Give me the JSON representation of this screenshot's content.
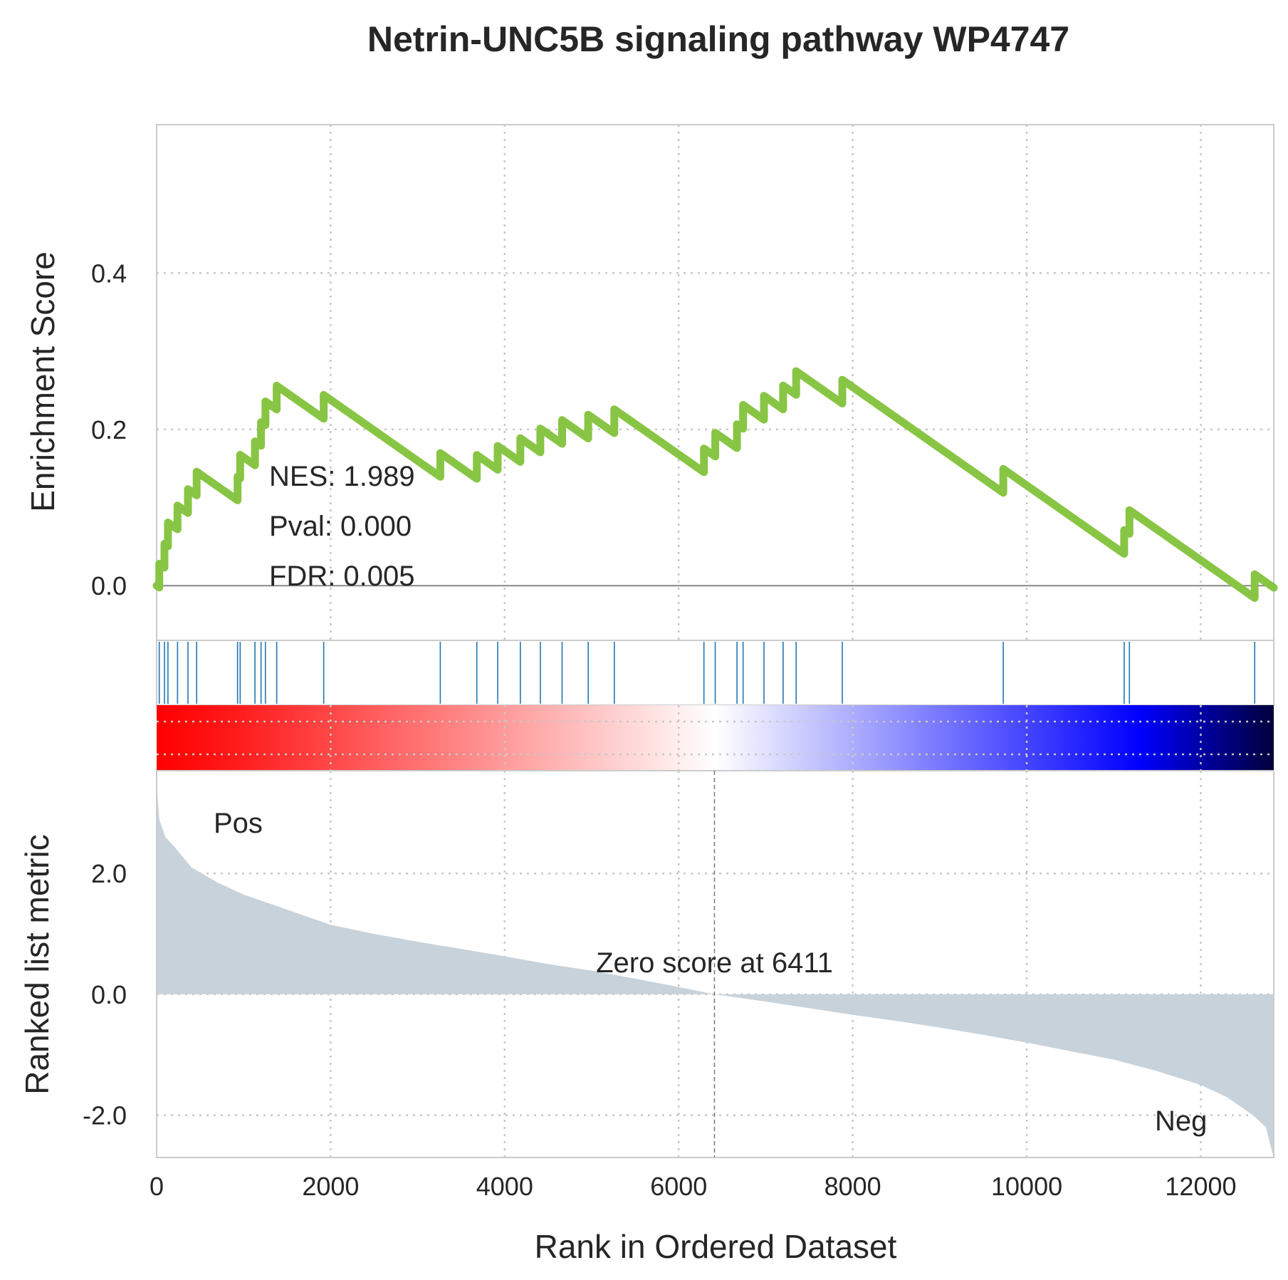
{
  "chart_data": {
    "type": "line",
    "title": "Netrin-UNC5B signaling pathway WP4747",
    "xlabel": "Rank in Ordered Dataset",
    "xlim": [
      0,
      12839
    ],
    "x_ticks": [
      "0",
      "2000",
      "4000",
      "6000",
      "8000",
      "10000",
      "12000"
    ],
    "x_tick_values": [
      0,
      2000,
      4000,
      6000,
      8000,
      10000,
      12000
    ],
    "es_panel": {
      "ylabel": "Enrichment Score",
      "ylim": [
        -0.07,
        0.59
      ],
      "y_ticks": [
        "0.0",
        "0.2",
        "0.4"
      ],
      "y_tick_values": [
        0.0,
        0.2,
        0.4
      ],
      "line_color": "#88c544",
      "hits": [
        30,
        90,
        130,
        240,
        360,
        460,
        930,
        960,
        1130,
        1200,
        1250,
        1380,
        1920,
        3260,
        3680,
        3920,
        4180,
        4410,
        4660,
        4960,
        5260,
        6290,
        6420,
        6670,
        6740,
        6980,
        7200,
        7350,
        7880,
        9730,
        11120,
        11180,
        12620
      ],
      "nes": "NES: 1.989",
      "pval": "Pval: 0.000",
      "fdr": "FDR: 0.005"
    },
    "hits_color": "#1f77b4",
    "colorbar": {
      "colors": [
        "#ff0000",
        "#ffffff",
        "#0000ff",
        "#000033"
      ]
    },
    "rank_panel": {
      "ylabel": "Ranked list metric",
      "ylim": [
        -2.7,
        3.7
      ],
      "y_ticks": [
        "2.0",
        "0.0",
        "-2.0"
      ],
      "y_tick_values": [
        2.0,
        0.0,
        -2.0
      ],
      "fill_color": "#c8d2da",
      "zero_cross": 6411,
      "zero_label": "Zero score at 6411",
      "pos_label": "Pos",
      "neg_label": "Neg",
      "pos_color": "#ff0000",
      "neg_color": "#0000ff",
      "curve": [
        [
          0,
          3.5
        ],
        [
          30,
          2.9
        ],
        [
          100,
          2.6
        ],
        [
          200,
          2.45
        ],
        [
          400,
          2.1
        ],
        [
          700,
          1.85
        ],
        [
          1000,
          1.65
        ],
        [
          1500,
          1.4
        ],
        [
          2000,
          1.15
        ],
        [
          2500,
          1.0
        ],
        [
          3000,
          0.87
        ],
        [
          3500,
          0.75
        ],
        [
          4000,
          0.63
        ],
        [
          4500,
          0.5
        ],
        [
          5000,
          0.39
        ],
        [
          5500,
          0.26
        ],
        [
          6000,
          0.12
        ],
        [
          6411,
          0.0
        ],
        [
          7000,
          -0.12
        ],
        [
          7500,
          -0.23
        ],
        [
          8000,
          -0.34
        ],
        [
          8500,
          -0.44
        ],
        [
          9000,
          -0.55
        ],
        [
          9500,
          -0.67
        ],
        [
          10000,
          -0.8
        ],
        [
          10500,
          -0.94
        ],
        [
          11000,
          -1.08
        ],
        [
          11500,
          -1.27
        ],
        [
          12000,
          -1.5
        ],
        [
          12300,
          -1.7
        ],
        [
          12600,
          -2.0
        ],
        [
          12750,
          -2.2
        ],
        [
          12800,
          -2.5
        ],
        [
          12839,
          -2.7
        ]
      ]
    }
  }
}
